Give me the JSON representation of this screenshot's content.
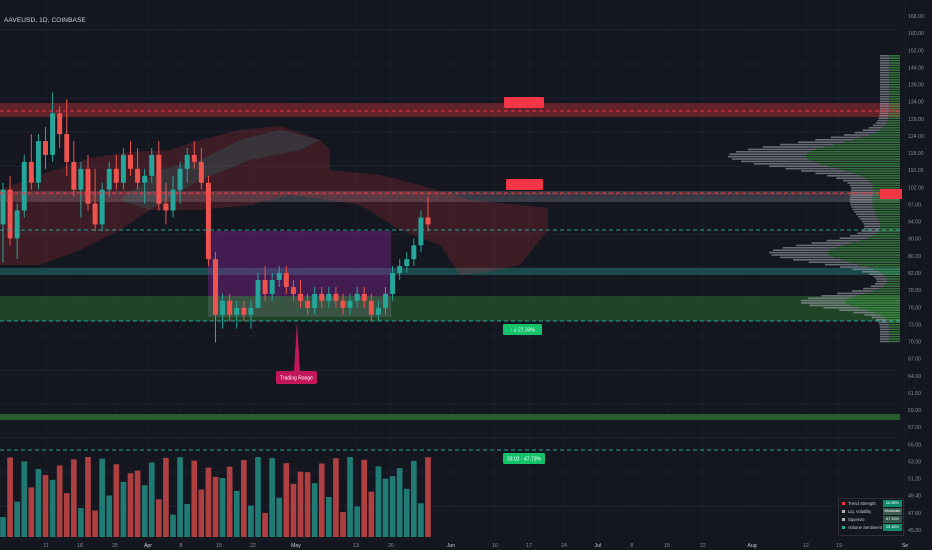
{
  "symbol": {
    "pair": "AAVEUSD",
    "timeframe": "1D",
    "exchange": "COINBASE"
  },
  "chart_data": {
    "type": "candlestick",
    "price_axis_ticks": [
      "168.00",
      "160.00",
      "152.00",
      "144.00",
      "139.00",
      "134.00",
      "129.00",
      "124.00",
      "118.00",
      "110.00",
      "102.00",
      "97.00",
      "94.00",
      "90.00",
      "86.00",
      "82.00",
      "78.00",
      "76.00",
      "73.00",
      "70.00",
      "67.00",
      "64.00",
      "61.50",
      "59.00",
      "57.00",
      "55.00",
      "53.00",
      "51.20",
      "49.40",
      "47.60",
      "45.00"
    ],
    "time_axis_ticks": [
      "11",
      "18",
      "25",
      "Apr",
      "8",
      "15",
      "22",
      "May",
      "13",
      "20",
      "Jun",
      "10",
      "17",
      "24",
      "Jul",
      "8",
      "15",
      "22",
      "Aug",
      "12",
      "19",
      "Se"
    ],
    "current_price_color": "#f23645",
    "bull_color": "#26a69a",
    "bear_color": "#ef5350",
    "candles": [
      {
        "o": 108,
        "h": 120,
        "l": 97,
        "c": 118
      },
      {
        "o": 118,
        "h": 122,
        "l": 102,
        "c": 104
      },
      {
        "o": 104,
        "h": 114,
        "l": 98,
        "c": 112
      },
      {
        "o": 112,
        "h": 128,
        "l": 110,
        "c": 126
      },
      {
        "o": 126,
        "h": 134,
        "l": 118,
        "c": 120
      },
      {
        "o": 120,
        "h": 134,
        "l": 118,
        "c": 132
      },
      {
        "o": 132,
        "h": 136,
        "l": 124,
        "c": 128
      },
      {
        "o": 128,
        "h": 146,
        "l": 126,
        "c": 140
      },
      {
        "o": 140,
        "h": 142,
        "l": 130,
        "c": 134
      },
      {
        "o": 134,
        "h": 144,
        "l": 122,
        "c": 126
      },
      {
        "o": 126,
        "h": 132,
        "l": 116,
        "c": 118
      },
      {
        "o": 118,
        "h": 126,
        "l": 110,
        "c": 124
      },
      {
        "o": 124,
        "h": 128,
        "l": 112,
        "c": 114
      },
      {
        "o": 114,
        "h": 124,
        "l": 106,
        "c": 108
      },
      {
        "o": 108,
        "h": 120,
        "l": 106,
        "c": 118
      },
      {
        "o": 118,
        "h": 126,
        "l": 116,
        "c": 124
      },
      {
        "o": 124,
        "h": 128,
        "l": 118,
        "c": 120
      },
      {
        "o": 120,
        "h": 130,
        "l": 118,
        "c": 128
      },
      {
        "o": 128,
        "h": 132,
        "l": 122,
        "c": 124
      },
      {
        "o": 124,
        "h": 130,
        "l": 118,
        "c": 120
      },
      {
        "o": 120,
        "h": 124,
        "l": 114,
        "c": 122
      },
      {
        "o": 122,
        "h": 130,
        "l": 120,
        "c": 128
      },
      {
        "o": 128,
        "h": 132,
        "l": 112,
        "c": 114
      },
      {
        "o": 114,
        "h": 120,
        "l": 108,
        "c": 112
      },
      {
        "o": 112,
        "h": 122,
        "l": 110,
        "c": 118
      },
      {
        "o": 118,
        "h": 126,
        "l": 114,
        "c": 124
      },
      {
        "o": 124,
        "h": 130,
        "l": 120,
        "c": 128
      },
      {
        "o": 128,
        "h": 132,
        "l": 124,
        "c": 126
      },
      {
        "o": 126,
        "h": 130,
        "l": 118,
        "c": 120
      },
      {
        "o": 120,
        "h": 122,
        "l": 96,
        "c": 98
      },
      {
        "o": 98,
        "h": 100,
        "l": 74,
        "c": 82
      },
      {
        "o": 82,
        "h": 88,
        "l": 78,
        "c": 86
      },
      {
        "o": 86,
        "h": 88,
        "l": 80,
        "c": 82
      },
      {
        "o": 82,
        "h": 86,
        "l": 78,
        "c": 84
      },
      {
        "o": 84,
        "h": 86,
        "l": 80,
        "c": 82
      },
      {
        "o": 82,
        "h": 86,
        "l": 78,
        "c": 84
      },
      {
        "o": 84,
        "h": 94,
        "l": 84,
        "c": 92
      },
      {
        "o": 92,
        "h": 96,
        "l": 86,
        "c": 88
      },
      {
        "o": 88,
        "h": 94,
        "l": 86,
        "c": 92
      },
      {
        "o": 92,
        "h": 96,
        "l": 90,
        "c": 94
      },
      {
        "o": 94,
        "h": 96,
        "l": 88,
        "c": 90
      },
      {
        "o": 90,
        "h": 92,
        "l": 86,
        "c": 88
      },
      {
        "o": 88,
        "h": 92,
        "l": 84,
        "c": 86
      },
      {
        "o": 86,
        "h": 88,
        "l": 82,
        "c": 84
      },
      {
        "o": 84,
        "h": 90,
        "l": 82,
        "c": 88
      },
      {
        "o": 88,
        "h": 90,
        "l": 84,
        "c": 86
      },
      {
        "o": 86,
        "h": 90,
        "l": 84,
        "c": 88
      },
      {
        "o": 88,
        "h": 90,
        "l": 84,
        "c": 86
      },
      {
        "o": 86,
        "h": 88,
        "l": 82,
        "c": 84
      },
      {
        "o": 84,
        "h": 88,
        "l": 82,
        "c": 86
      },
      {
        "o": 86,
        "h": 90,
        "l": 84,
        "c": 88
      },
      {
        "o": 88,
        "h": 90,
        "l": 84,
        "c": 86
      },
      {
        "o": 86,
        "h": 88,
        "l": 80,
        "c": 82
      },
      {
        "o": 82,
        "h": 86,
        "l": 80,
        "c": 84
      },
      {
        "o": 84,
        "h": 90,
        "l": 82,
        "c": 88
      },
      {
        "o": 88,
        "h": 96,
        "l": 86,
        "c": 94
      },
      {
        "o": 94,
        "h": 98,
        "l": 92,
        "c": 96
      },
      {
        "o": 96,
        "h": 100,
        "l": 94,
        "c": 98
      },
      {
        "o": 98,
        "h": 104,
        "l": 96,
        "c": 102
      },
      {
        "o": 102,
        "h": 112,
        "l": 100,
        "c": 110
      },
      {
        "o": 110,
        "h": 116,
        "l": 106,
        "c": 108
      }
    ],
    "volume_scale_max": 64
  },
  "annotations": {
    "trading_range": "Trading Range",
    "resistance_1": "",
    "resistance_2": "",
    "support_1": "↑ ≤ 27.33%",
    "support_2": "33.02 - 47.73%"
  },
  "legend": {
    "rows": [
      {
        "name": "Trend Strength",
        "value": "26.85%",
        "dot": "#f23645",
        "bg": "#0f8a6b"
      },
      {
        "name": "Liq. Volatility",
        "value": "Moderate",
        "dot": "#b2b5be",
        "bg": "#3d5b52"
      },
      {
        "name": "Squeeze",
        "value": "87.15%",
        "dot": "#b2b5be",
        "bg": "#2f5848"
      },
      {
        "name": "Volume Sentiment",
        "value": "25.18%",
        "dot": "#26a69a",
        "bg": "#0f8a6b"
      }
    ]
  }
}
